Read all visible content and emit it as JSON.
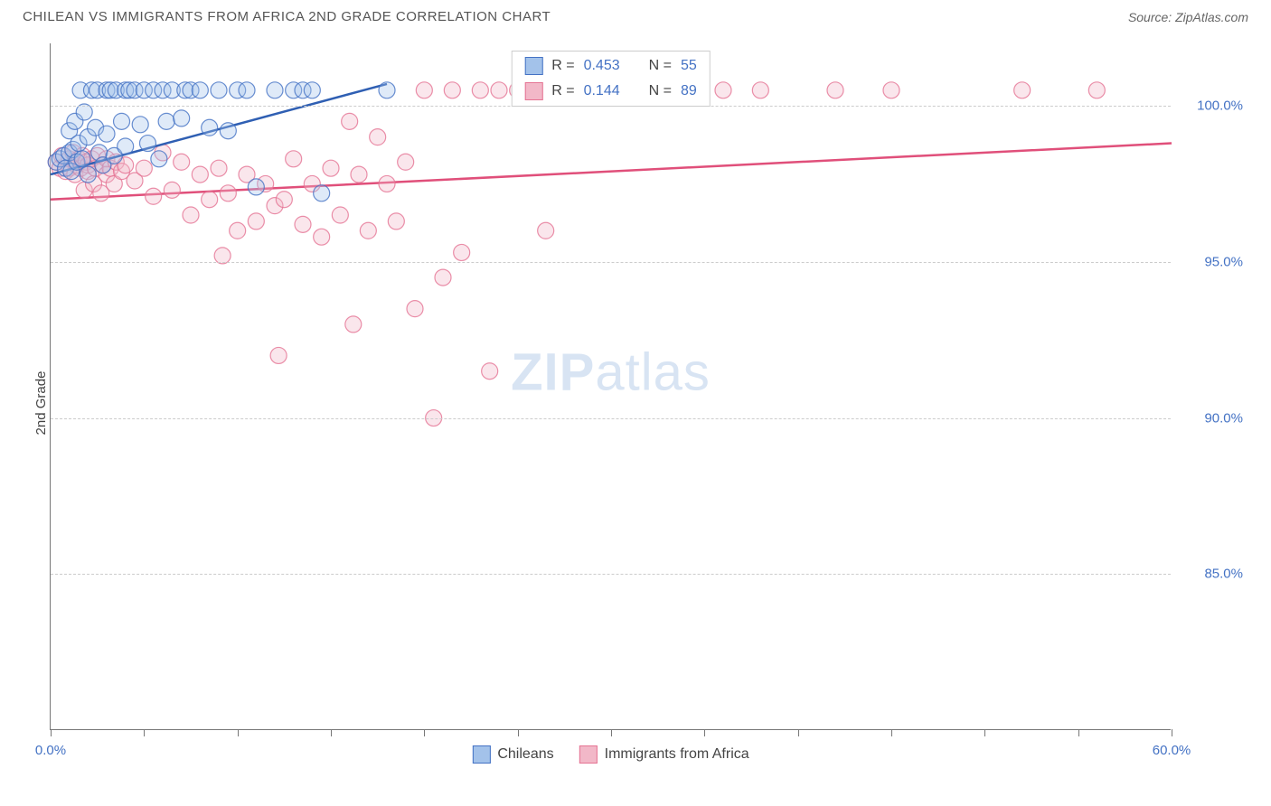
{
  "header": {
    "title": "CHILEAN VS IMMIGRANTS FROM AFRICA 2ND GRADE CORRELATION CHART",
    "source_prefix": "Source: ",
    "source_name": "ZipAtlas.com"
  },
  "chart": {
    "type": "scatter",
    "ylabel": "2nd Grade",
    "xlim": [
      0,
      60
    ],
    "ylim": [
      80,
      102
    ],
    "xticks": [
      0,
      5,
      10,
      15,
      20,
      25,
      30,
      35,
      40,
      45,
      50,
      55,
      60
    ],
    "xtick_labels": {
      "0": "0.0%",
      "60": "60.0%"
    },
    "yticks": [
      85,
      90,
      95,
      100
    ],
    "ytick_labels": [
      "85.0%",
      "90.0%",
      "95.0%",
      "100.0%"
    ],
    "background_color": "#ffffff",
    "grid_color": "#cccccc",
    "axis_color": "#777777",
    "label_color": "#4472c4",
    "marker_radius": 9,
    "marker_opacity": 0.35,
    "line_width": 2.5,
    "watermark": {
      "zip": "ZIP",
      "atlas": "atlas"
    },
    "series": [
      {
        "name": "Chileans",
        "fill": "#a3c2ea",
        "stroke": "#4472c4",
        "line_color": "#2f5fb3",
        "trend": {
          "x1": 0,
          "y1": 97.8,
          "x2": 18,
          "y2": 100.7
        },
        "R": "0.453",
        "N": "55",
        "points": [
          [
            0.3,
            98.2
          ],
          [
            0.5,
            98.3
          ],
          [
            0.7,
            98.4
          ],
          [
            0.8,
            98.0
          ],
          [
            1.0,
            98.5
          ],
          [
            1.0,
            99.2
          ],
          [
            1.1,
            97.9
          ],
          [
            1.2,
            98.6
          ],
          [
            1.3,
            99.5
          ],
          [
            1.4,
            98.2
          ],
          [
            1.5,
            98.8
          ],
          [
            1.6,
            100.5
          ],
          [
            1.7,
            98.3
          ],
          [
            1.8,
            99.8
          ],
          [
            2.0,
            99.0
          ],
          [
            2.0,
            97.8
          ],
          [
            2.2,
            100.5
          ],
          [
            2.4,
            99.3
          ],
          [
            2.5,
            100.5
          ],
          [
            2.6,
            98.5
          ],
          [
            2.8,
            98.1
          ],
          [
            3.0,
            100.5
          ],
          [
            3.0,
            99.1
          ],
          [
            3.2,
            100.5
          ],
          [
            3.4,
            98.4
          ],
          [
            3.5,
            100.5
          ],
          [
            3.8,
            99.5
          ],
          [
            4.0,
            100.5
          ],
          [
            4.0,
            98.7
          ],
          [
            4.2,
            100.5
          ],
          [
            4.5,
            100.5
          ],
          [
            4.8,
            99.4
          ],
          [
            5.0,
            100.5
          ],
          [
            5.2,
            98.8
          ],
          [
            5.5,
            100.5
          ],
          [
            5.8,
            98.3
          ],
          [
            6.0,
            100.5
          ],
          [
            6.2,
            99.5
          ],
          [
            6.5,
            100.5
          ],
          [
            7.0,
            99.6
          ],
          [
            7.2,
            100.5
          ],
          [
            7.5,
            100.5
          ],
          [
            8.0,
            100.5
          ],
          [
            8.5,
            99.3
          ],
          [
            9.0,
            100.5
          ],
          [
            9.5,
            99.2
          ],
          [
            10.0,
            100.5
          ],
          [
            10.5,
            100.5
          ],
          [
            11.0,
            97.4
          ],
          [
            12.0,
            100.5
          ],
          [
            13.0,
            100.5
          ],
          [
            13.5,
            100.5
          ],
          [
            14.0,
            100.5
          ],
          [
            14.5,
            97.2
          ],
          [
            18.0,
            100.5
          ]
        ]
      },
      {
        "name": "Immigrants from Africa",
        "fill": "#f2b8c8",
        "stroke": "#e57393",
        "line_color": "#e04f7a",
        "trend": {
          "x1": 0,
          "y1": 97.0,
          "x2": 60,
          "y2": 98.8
        },
        "R": "0.144",
        "N": "89",
        "points": [
          [
            0.3,
            98.2
          ],
          [
            0.5,
            98.0
          ],
          [
            0.6,
            98.4
          ],
          [
            0.8,
            97.9
          ],
          [
            1.0,
            98.3
          ],
          [
            1.0,
            98.0
          ],
          [
            1.2,
            98.5
          ],
          [
            1.3,
            97.8
          ],
          [
            1.4,
            98.1
          ],
          [
            1.5,
            98.3
          ],
          [
            1.6,
            98.0
          ],
          [
            1.7,
            98.4
          ],
          [
            1.8,
            97.3
          ],
          [
            1.9,
            98.2
          ],
          [
            2.0,
            98.1
          ],
          [
            2.0,
            97.9
          ],
          [
            2.2,
            98.3
          ],
          [
            2.3,
            97.5
          ],
          [
            2.4,
            98.0
          ],
          [
            2.5,
            98.4
          ],
          [
            2.7,
            97.2
          ],
          [
            2.8,
            98.1
          ],
          [
            3.0,
            98.3
          ],
          [
            3.0,
            97.8
          ],
          [
            3.2,
            98.0
          ],
          [
            3.4,
            97.5
          ],
          [
            3.5,
            98.2
          ],
          [
            3.8,
            97.9
          ],
          [
            4.0,
            98.1
          ],
          [
            4.5,
            97.6
          ],
          [
            5.0,
            98.0
          ],
          [
            5.5,
            97.1
          ],
          [
            6.0,
            98.5
          ],
          [
            6.5,
            97.3
          ],
          [
            7.0,
            98.2
          ],
          [
            7.5,
            96.5
          ],
          [
            8.0,
            97.8
          ],
          [
            8.5,
            97.0
          ],
          [
            9.0,
            98.0
          ],
          [
            9.2,
            95.2
          ],
          [
            9.5,
            97.2
          ],
          [
            10.0,
            96.0
          ],
          [
            10.5,
            97.8
          ],
          [
            11.0,
            96.3
          ],
          [
            11.5,
            97.5
          ],
          [
            12.0,
            96.8
          ],
          [
            12.2,
            92.0
          ],
          [
            12.5,
            97.0
          ],
          [
            13.0,
            98.3
          ],
          [
            13.5,
            96.2
          ],
          [
            14.0,
            97.5
          ],
          [
            14.5,
            95.8
          ],
          [
            15.0,
            98.0
          ],
          [
            15.5,
            96.5
          ],
          [
            16.0,
            99.5
          ],
          [
            16.2,
            93.0
          ],
          [
            16.5,
            97.8
          ],
          [
            17.0,
            96.0
          ],
          [
            17.5,
            99.0
          ],
          [
            18.0,
            97.5
          ],
          [
            18.5,
            96.3
          ],
          [
            19.0,
            98.2
          ],
          [
            19.5,
            93.5
          ],
          [
            20.0,
            100.5
          ],
          [
            20.5,
            90.0
          ],
          [
            21.0,
            94.5
          ],
          [
            21.5,
            100.5
          ],
          [
            22.0,
            95.3
          ],
          [
            23.0,
            100.5
          ],
          [
            23.5,
            91.5
          ],
          [
            24.0,
            100.5
          ],
          [
            25.0,
            100.5
          ],
          [
            26.0,
            100.5
          ],
          [
            26.5,
            96.0
          ],
          [
            27.0,
            100.5
          ],
          [
            28.0,
            100.5
          ],
          [
            29.0,
            100.5
          ],
          [
            30.0,
            100.5
          ],
          [
            30.5,
            100.5
          ],
          [
            31.0,
            100.5
          ],
          [
            32.0,
            100.5
          ],
          [
            33.0,
            100.5
          ],
          [
            34.0,
            100.5
          ],
          [
            36.0,
            100.5
          ],
          [
            38.0,
            100.5
          ],
          [
            42.0,
            100.5
          ],
          [
            45.0,
            100.5
          ],
          [
            52.0,
            100.5
          ],
          [
            56.0,
            100.5
          ]
        ]
      }
    ],
    "legend_bottom": [
      {
        "label": "Chileans",
        "fill": "#a3c2ea",
        "stroke": "#4472c4"
      },
      {
        "label": "Immigrants from Africa",
        "fill": "#f2b8c8",
        "stroke": "#e57393"
      }
    ]
  }
}
